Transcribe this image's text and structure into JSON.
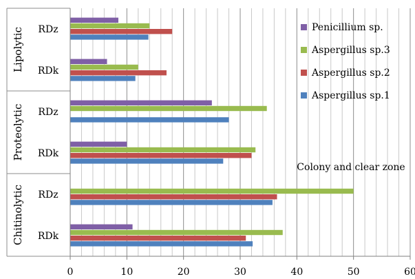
{
  "chart_data": {
    "type": "bar",
    "orientation": "horizontal",
    "title": "",
    "xlabel": "",
    "ylabel": "",
    "xlim": [
      0,
      60
    ],
    "xticks": [
      0,
      10,
      20,
      30,
      40,
      50,
      60
    ],
    "grid": "vertical",
    "legend_position": "top-right",
    "annotation": "Colony and clear zone",
    "groups": [
      {
        "name": "Lipolytic",
        "categories": [
          "RDz",
          "RDk"
        ]
      },
      {
        "name": "Proteolytic",
        "categories": [
          "RDz",
          "RDk"
        ]
      },
      {
        "name": "Chitinolytic",
        "categories": [
          "RDz",
          "RDk"
        ]
      }
    ],
    "series": [
      {
        "name": "Penicillium sp.",
        "color": "#7f5fa6",
        "values": [
          8.5,
          6.5,
          25,
          10,
          0,
          11
        ]
      },
      {
        "name": "Aspergillus sp.3",
        "color": "#99bb4f",
        "values": [
          14,
          12,
          34.7,
          32.7,
          50,
          37.5
        ]
      },
      {
        "name": "Aspergillus sp.2",
        "color": "#c0504d",
        "values": [
          18,
          17,
          0,
          32,
          36.5,
          31
        ]
      },
      {
        "name": "Aspergillus sp.1",
        "color": "#4f81bd",
        "values": [
          13.8,
          11.5,
          28,
          27,
          35.7,
          32.2
        ]
      }
    ]
  }
}
